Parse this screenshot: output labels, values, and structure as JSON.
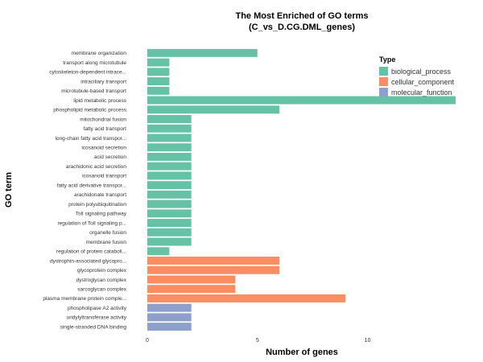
{
  "chart_data": {
    "type": "bar",
    "orientation": "horizontal",
    "title": "The Most Enriched of GO terms",
    "subtitle": "(C_vs_D.CG.DML_genes)",
    "xlabel": "Number of genes",
    "ylabel": "GO term",
    "xlim": [
      0,
      14
    ],
    "xticks": [
      0,
      5,
      10
    ],
    "grid": false,
    "legend": {
      "title": "Type",
      "placement": "top-right",
      "entries": [
        {
          "name": "biological_process",
          "color": "#66c2a5"
        },
        {
          "name": "cellular_component",
          "color": "#fc8d62"
        },
        {
          "name": "molecular_function",
          "color": "#8da0cb"
        }
      ]
    },
    "categories": [
      "membrane organization",
      "transport along microtubule",
      "cytoskeleton-dependent intrace...",
      "intraciliary transport",
      "microtubule-based transport",
      "lipid metabolic process",
      "phospholipid metabolic process",
      "mitochondrial fusion",
      "fatty acid transport",
      "long-chain fatty acid transpor...",
      "icosanoid secretion",
      "acid secretion",
      "arachidonic acid secretion",
      "icosanoid transport",
      "fatty acid derivative transpor...",
      "arachidonate transport",
      "protein polyubiquitination",
      "Toll signaling pathway",
      "regulation of Toll signaling p...",
      "organelle fusion",
      "membrane fusion",
      "regulation of protein cataboli...",
      "dystrophin-associated glycopro...",
      "glycoprotein complex",
      "dystroglycan complex",
      "sarcoglycan complex",
      "plasma membrane protein comple...",
      "phospholipase A2 activity",
      "uridylyltransferase activity",
      "single-stranded DNA binding"
    ],
    "values": [
      5,
      1,
      1,
      1,
      1,
      14,
      6,
      2,
      2,
      2,
      2,
      2,
      2,
      2,
      2,
      2,
      2,
      2,
      2,
      2,
      2,
      1,
      6,
      6,
      4,
      4,
      9,
      2,
      2,
      2
    ],
    "types": [
      "biological_process",
      "biological_process",
      "biological_process",
      "biological_process",
      "biological_process",
      "biological_process",
      "biological_process",
      "biological_process",
      "biological_process",
      "biological_process",
      "biological_process",
      "biological_process",
      "biological_process",
      "biological_process",
      "biological_process",
      "biological_process",
      "biological_process",
      "biological_process",
      "biological_process",
      "biological_process",
      "biological_process",
      "biological_process",
      "cellular_component",
      "cellular_component",
      "cellular_component",
      "cellular_component",
      "cellular_component",
      "molecular_function",
      "molecular_function",
      "molecular_function"
    ]
  }
}
